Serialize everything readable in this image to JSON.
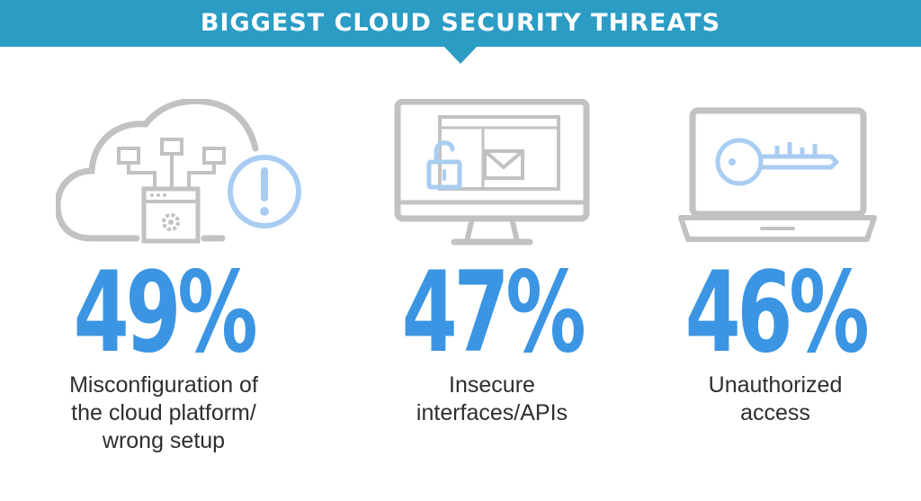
{
  "chart_data": {
    "type": "table",
    "title": "BIGGEST CLOUD SECURITY THREATS",
    "categories": [
      "Misconfiguration of the cloud platform/ wrong setup",
      "Insecure interfaces/APIs",
      "Unauthorized access"
    ],
    "values": [
      49,
      47,
      46
    ],
    "items": [
      {
        "value": 49,
        "label": "49%",
        "icon": "cloud-warning-icon",
        "desc_lines": [
          "Misconfiguration of",
          "the cloud platform/",
          "wrong setup"
        ]
      },
      {
        "value": 47,
        "label": "47%",
        "icon": "monitor-lock-mail-icon",
        "desc_lines": [
          "Insecure",
          "interfaces/APIs"
        ]
      },
      {
        "value": 46,
        "label": "46%",
        "icon": "laptop-key-icon",
        "desc_lines": [
          "Unauthorized",
          "access"
        ]
      }
    ]
  },
  "colors": {
    "banner": "#2b9cc4",
    "accent": "#3b95e3",
    "icon_gray": "#c2c2c2",
    "icon_blue": "#a9cdf2",
    "text": "#2e2e2e"
  }
}
